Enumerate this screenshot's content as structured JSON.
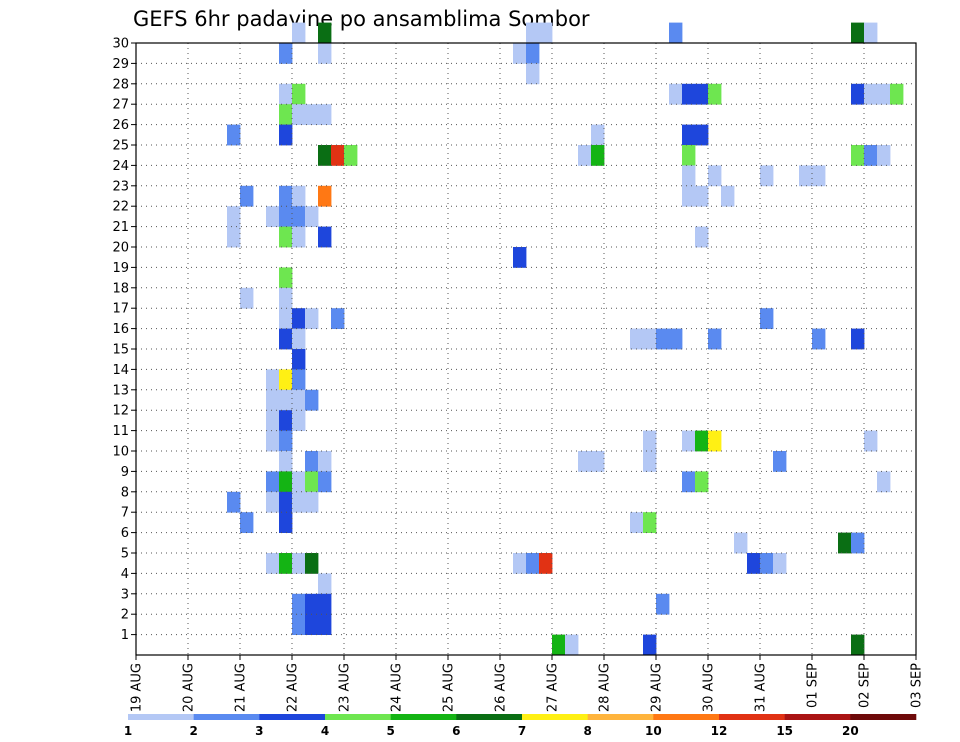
{
  "chart_data": {
    "type": "heatmap",
    "title": "GEFS 6hr padavine po ansamblima Sombor",
    "xlabel": "",
    "ylabel": "",
    "x_ticks": [
      "19 AUG",
      "20 AUG",
      "21 AUG",
      "22 AUG",
      "23 AUG",
      "24 AUG",
      "25 AUG",
      "26 AUG",
      "27 AUG",
      "28 AUG",
      "29 AUG",
      "30 AUG",
      "31 AUG",
      "01 SEP",
      "02 SEP",
      "03 SEP"
    ],
    "y_ticks": [
      "1",
      "2",
      "3",
      "4",
      "5",
      "6",
      "7",
      "8",
      "9",
      "10",
      "11",
      "12",
      "13",
      "14",
      "15",
      "16",
      "17",
      "18",
      "19",
      "20",
      "21",
      "22",
      "23",
      "24",
      "25",
      "26",
      "27",
      "28",
      "29",
      "30"
    ],
    "x_range": [
      0,
      60
    ],
    "y_range": [
      0,
      30
    ],
    "grid": true,
    "legend_placement": "bottom",
    "legend": {
      "labels": [
        "1",
        "2",
        "3",
        "4",
        "5",
        "6",
        "7",
        "8",
        "10",
        "12",
        "15",
        "20"
      ],
      "colors": [
        "#b4c8f5",
        "#5a8af0",
        "#1e46dc",
        "#6ee650",
        "#14b414",
        "#0a6e14",
        "#fff014",
        "#ffb43c",
        "#ff7814",
        "#e13214",
        "#aa1414",
        "#6e0a0a"
      ]
    },
    "cells_note": "each cell: [6hr step from 19 AUG 00Z, ensemble member 0-30, color class 0-11]",
    "cells": [
      [
        12,
        30,
        0
      ],
      [
        14,
        30,
        5
      ],
      [
        30,
        30,
        0
      ],
      [
        31,
        30,
        0
      ],
      [
        41,
        30,
        1
      ],
      [
        55,
        30,
        5
      ],
      [
        56,
        30,
        0
      ],
      [
        11,
        29,
        1
      ],
      [
        14,
        29,
        0
      ],
      [
        29,
        29,
        0
      ],
      [
        30,
        29,
        1
      ],
      [
        30,
        28,
        0
      ],
      [
        11,
        27,
        0
      ],
      [
        12,
        27,
        3
      ],
      [
        41,
        27,
        0
      ],
      [
        42,
        27,
        2
      ],
      [
        43,
        27,
        2
      ],
      [
        44,
        27,
        3
      ],
      [
        55,
        27,
        2
      ],
      [
        56,
        27,
        0
      ],
      [
        57,
        27,
        0
      ],
      [
        58,
        27,
        3
      ],
      [
        11,
        26,
        3
      ],
      [
        12,
        26,
        0
      ],
      [
        13,
        26,
        0
      ],
      [
        14,
        26,
        0
      ],
      [
        7,
        25,
        1
      ],
      [
        11,
        25,
        2
      ],
      [
        35,
        25,
        0
      ],
      [
        42,
        25,
        2
      ],
      [
        43,
        25,
        2
      ],
      [
        14,
        24,
        5
      ],
      [
        15,
        24,
        9
      ],
      [
        16,
        24,
        3
      ],
      [
        34,
        24,
        0
      ],
      [
        35,
        24,
        4
      ],
      [
        42,
        24,
        3
      ],
      [
        55,
        24,
        3
      ],
      [
        56,
        24,
        1
      ],
      [
        57,
        24,
        0
      ],
      [
        42,
        23,
        0
      ],
      [
        44,
        23,
        0
      ],
      [
        48,
        23,
        0
      ],
      [
        51,
        23,
        0
      ],
      [
        52,
        23,
        0
      ],
      [
        8,
        22,
        1
      ],
      [
        11,
        22,
        1
      ],
      [
        12,
        22,
        0
      ],
      [
        14,
        22,
        8
      ],
      [
        42,
        22,
        0
      ],
      [
        43,
        22,
        0
      ],
      [
        45,
        22,
        0
      ],
      [
        7,
        21,
        0
      ],
      [
        10,
        21,
        0
      ],
      [
        11,
        21,
        1
      ],
      [
        12,
        21,
        1
      ],
      [
        13,
        21,
        0
      ],
      [
        7,
        20,
        0
      ],
      [
        11,
        20,
        3
      ],
      [
        12,
        20,
        0
      ],
      [
        14,
        20,
        2
      ],
      [
        43,
        20,
        0
      ],
      [
        29,
        19,
        2
      ],
      [
        11,
        18,
        3
      ],
      [
        8,
        17,
        0
      ],
      [
        11,
        17,
        0
      ],
      [
        11,
        16,
        0
      ],
      [
        12,
        16,
        2
      ],
      [
        13,
        16,
        0
      ],
      [
        15,
        16,
        1
      ],
      [
        48,
        16,
        1
      ],
      [
        11,
        15,
        2
      ],
      [
        12,
        15,
        0
      ],
      [
        38,
        15,
        0
      ],
      [
        39,
        15,
        0
      ],
      [
        40,
        15,
        1
      ],
      [
        41,
        15,
        1
      ],
      [
        44,
        15,
        1
      ],
      [
        52,
        15,
        1
      ],
      [
        55,
        15,
        2
      ],
      [
        12,
        14,
        2
      ],
      [
        10,
        13,
        0
      ],
      [
        11,
        13,
        6
      ],
      [
        12,
        13,
        1
      ],
      [
        10,
        12,
        0
      ],
      [
        11,
        12,
        0
      ],
      [
        12,
        12,
        0
      ],
      [
        13,
        12,
        1
      ],
      [
        10,
        11,
        0
      ],
      [
        11,
        11,
        2
      ],
      [
        12,
        11,
        0
      ],
      [
        10,
        10,
        0
      ],
      [
        11,
        10,
        1
      ],
      [
        39,
        10,
        0
      ],
      [
        42,
        10,
        0
      ],
      [
        43,
        10,
        4
      ],
      [
        44,
        10,
        6
      ],
      [
        56,
        10,
        0
      ],
      [
        11,
        9,
        0
      ],
      [
        13,
        9,
        1
      ],
      [
        14,
        9,
        0
      ],
      [
        34,
        9,
        0
      ],
      [
        35,
        9,
        0
      ],
      [
        39,
        9,
        0
      ],
      [
        49,
        9,
        1
      ],
      [
        10,
        8,
        1
      ],
      [
        11,
        8,
        4
      ],
      [
        12,
        8,
        0
      ],
      [
        13,
        8,
        3
      ],
      [
        14,
        8,
        1
      ],
      [
        42,
        8,
        1
      ],
      [
        43,
        8,
        3
      ],
      [
        57,
        8,
        0
      ],
      [
        7,
        7,
        1
      ],
      [
        10,
        7,
        0
      ],
      [
        11,
        7,
        2
      ],
      [
        12,
        7,
        0
      ],
      [
        13,
        7,
        0
      ],
      [
        8,
        6,
        1
      ],
      [
        11,
        6,
        2
      ],
      [
        38,
        6,
        0
      ],
      [
        39,
        6,
        3
      ],
      [
        46,
        5,
        0
      ],
      [
        54,
        5,
        5
      ],
      [
        55,
        5,
        1
      ],
      [
        10,
        4,
        0
      ],
      [
        11,
        4,
        4
      ],
      [
        12,
        4,
        0
      ],
      [
        13,
        4,
        5
      ],
      [
        29,
        4,
        0
      ],
      [
        30,
        4,
        1
      ],
      [
        31,
        4,
        9
      ],
      [
        47,
        4,
        2
      ],
      [
        48,
        4,
        1
      ],
      [
        49,
        4,
        0
      ],
      [
        14,
        3,
        0
      ],
      [
        12,
        2,
        1
      ],
      [
        13,
        2,
        2
      ],
      [
        14,
        2,
        2
      ],
      [
        40,
        2,
        1
      ],
      [
        12,
        1,
        1
      ],
      [
        13,
        1,
        2
      ],
      [
        14,
        1,
        2
      ],
      [
        32,
        0,
        4
      ],
      [
        33,
        0,
        0
      ],
      [
        39,
        0,
        2
      ],
      [
        55,
        0,
        5
      ]
    ]
  }
}
